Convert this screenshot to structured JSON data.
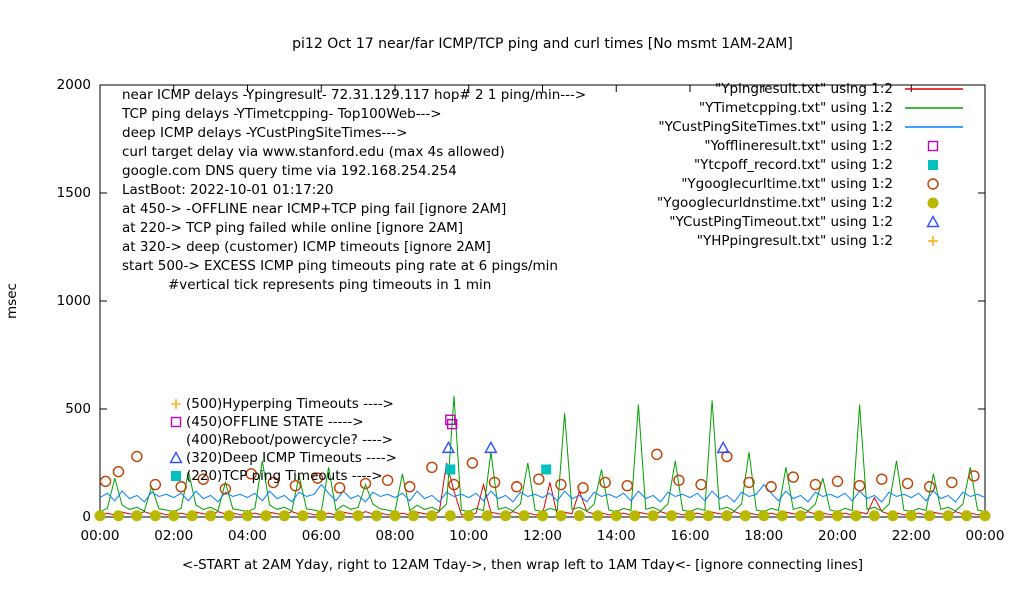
{
  "chart_data": {
    "type": "line",
    "title": "pi12 Oct 17  near/far ICMP/TCP ping and curl times [No msmt 1AM-2AM]",
    "xlabel": "<-START at 2AM Yday, right to 12AM Tday->, then wrap left to 1AM Tday<- [ignore connecting lines]",
    "ylabel": "msec",
    "xlim": [
      0,
      24
    ],
    "ylim": [
      0,
      2000
    ],
    "grid": false,
    "legend_position": "top-right",
    "x_tick_labels": [
      "00:00",
      "02:00",
      "04:00",
      "06:00",
      "08:00",
      "10:00",
      "12:00",
      "14:00",
      "16:00",
      "18:00",
      "20:00",
      "22:00",
      "00:00"
    ],
    "y_ticks": [
      0,
      500,
      1000,
      1500,
      2000
    ],
    "annotations_topleft": [
      "near ICMP delays -Ypingresult- 72.31.129.117 hop# 2 1 ping/min--->",
      "TCP ping delays -YTimetcpping- Top100Web--->",
      "deep ICMP delays -YCustPingSiteTimes--->",
      "curl target delay via www.stanford.edu (max 4s allowed)",
      "google.com DNS query time via 192.168.254.254",
      "LastBoot: 2022-10-01 01:17:20",
      "at 450-> -OFFLINE near ICMP+TCP ping fail [ignore 2AM]",
      "at 220-> TCP ping failed while online [ignore 2AM]",
      "at 320-> deep (customer) ICMP timeouts [ignore 2AM]",
      "start 500-> EXCESS ICMP ping timeouts ping rate at 6 pings/min",
      "#vertical tick represents ping timeouts in 1 min"
    ],
    "annotations_mid": [
      {
        "marker": "plus",
        "color": "#ffa500",
        "text": "(500)Hyperping Timeouts ---->"
      },
      {
        "marker": "square-open",
        "color": "#c000c0",
        "text": "(450)OFFLINE STATE ----->"
      },
      {
        "marker": "none",
        "color": "#000000",
        "text": "(400)Reboot/powercycle? ---->"
      },
      {
        "marker": "triangle-open",
        "color": "#3050ff",
        "text": "(320)Deep ICMP Timeouts ---->"
      },
      {
        "marker": "square-filled",
        "color": "#00c0c0",
        "text": "(220)TCP ping Timeouts ---->"
      }
    ],
    "series": [
      {
        "name": "\"Ypingresult.txt\" using 1:2",
        "style": "line",
        "color": "#e00000",
        "x_start": 0,
        "x_step": 0.2,
        "y": [
          12,
          18,
          9,
          22,
          15,
          11,
          25,
          14,
          19,
          10,
          12,
          18,
          9,
          22,
          15,
          11,
          25,
          14,
          19,
          10,
          12,
          18,
          9,
          22,
          15,
          11,
          25,
          14,
          19,
          10,
          12,
          18,
          9,
          22,
          15,
          11,
          25,
          14,
          19,
          10,
          12,
          18,
          9,
          22,
          15,
          11,
          25,
          250,
          120,
          10,
          12,
          18,
          150,
          22,
          15,
          11,
          25,
          14,
          19,
          10,
          12,
          160,
          9,
          22,
          15,
          120,
          25,
          14,
          19,
          10,
          12,
          18,
          9,
          22,
          15,
          11,
          25,
          14,
          19,
          10,
          12,
          18,
          9,
          22,
          15,
          11,
          25,
          14,
          19,
          10,
          12,
          18,
          9,
          22,
          15,
          11,
          25,
          14,
          19,
          10,
          12,
          18,
          9,
          22,
          15,
          90,
          25,
          14,
          19,
          10,
          12,
          18,
          9,
          22,
          15,
          11,
          25,
          14,
          19,
          10,
          12
        ]
      },
      {
        "name": "\"YTimetcpping.txt\" using 1:2",
        "style": "line",
        "color": "#00a000",
        "x_start": 0,
        "x_step": 0.2,
        "y": [
          25,
          40,
          180,
          55,
          35,
          45,
          28,
          140,
          38,
          32,
          25,
          40,
          210,
          55,
          35,
          45,
          28,
          160,
          38,
          32,
          25,
          40,
          260,
          55,
          35,
          45,
          28,
          190,
          38,
          32,
          25,
          230,
          30,
          55,
          35,
          45,
          150,
          60,
          38,
          32,
          25,
          200,
          30,
          55,
          35,
          45,
          28,
          60,
          560,
          32,
          25,
          40,
          30,
          300,
          35,
          45,
          28,
          60,
          250,
          32,
          25,
          40,
          30,
          480,
          35,
          45,
          28,
          60,
          220,
          32,
          25,
          40,
          30,
          520,
          35,
          45,
          28,
          60,
          260,
          32,
          25,
          40,
          30,
          540,
          35,
          45,
          28,
          60,
          300,
          32,
          25,
          40,
          30,
          230,
          35,
          45,
          28,
          60,
          180,
          32,
          25,
          40,
          30,
          520,
          35,
          45,
          28,
          60,
          260,
          32,
          25,
          40,
          30,
          200,
          35,
          45,
          28,
          60,
          230,
          32,
          25
        ]
      },
      {
        "name": "\"YCustPingSiteTimes.txt\" using 1:2",
        "style": "line",
        "color": "#0080ff",
        "x_start": 0,
        "x_step": 0.2,
        "y": [
          90,
          110,
          75,
          120,
          85,
          100,
          70,
          115,
          95,
          105,
          90,
          110,
          75,
          120,
          85,
          100,
          70,
          115,
          95,
          105,
          90,
          110,
          75,
          120,
          85,
          100,
          70,
          115,
          95,
          105,
          150,
          110,
          75,
          120,
          85,
          100,
          70,
          115,
          95,
          105,
          90,
          110,
          75,
          120,
          85,
          100,
          70,
          115,
          95,
          105,
          90,
          110,
          75,
          120,
          85,
          100,
          70,
          115,
          95,
          105,
          90,
          110,
          75,
          120,
          85,
          100,
          70,
          115,
          95,
          105,
          90,
          110,
          75,
          120,
          85,
          100,
          70,
          115,
          95,
          105,
          90,
          110,
          75,
          120,
          85,
          100,
          70,
          115,
          95,
          105,
          150,
          110,
          75,
          120,
          85,
          100,
          70,
          115,
          95,
          105,
          90,
          110,
          75,
          120,
          85,
          100,
          70,
          115,
          95,
          105,
          90,
          110,
          75,
          120,
          85,
          100,
          70,
          115,
          95,
          105,
          90
        ]
      },
      {
        "name": "\"Yofflineresult.txt\" using 1:2",
        "style": "square-open",
        "color": "#c000c0",
        "points": [
          [
            9.5,
            450
          ],
          [
            9.55,
            430
          ]
        ]
      },
      {
        "name": "\"Ytcpoff_record.txt\" using 1:2",
        "style": "square-filled",
        "color": "#00c0c0",
        "points": [
          [
            9.5,
            220
          ],
          [
            12.1,
            220
          ]
        ]
      },
      {
        "name": "\"Ygooglecurltime.txt\" using 1:2",
        "style": "circle-open",
        "color": "#c04000",
        "points": [
          [
            0.15,
            165
          ],
          [
            0.5,
            210
          ],
          [
            1.0,
            280
          ],
          [
            1.5,
            150
          ],
          [
            2.2,
            140
          ],
          [
            2.8,
            175
          ],
          [
            3.4,
            130
          ],
          [
            4.1,
            200
          ],
          [
            4.7,
            160
          ],
          [
            5.3,
            145
          ],
          [
            5.9,
            180
          ],
          [
            6.5,
            135
          ],
          [
            7.2,
            155
          ],
          [
            7.8,
            170
          ],
          [
            8.4,
            140
          ],
          [
            9.0,
            230
          ],
          [
            9.6,
            150
          ],
          [
            10.1,
            250
          ],
          [
            10.7,
            160
          ],
          [
            11.3,
            140
          ],
          [
            11.9,
            175
          ],
          [
            12.5,
            150
          ],
          [
            13.1,
            135
          ],
          [
            13.7,
            160
          ],
          [
            14.3,
            145
          ],
          [
            15.1,
            290
          ],
          [
            15.7,
            170
          ],
          [
            16.3,
            150
          ],
          [
            17.0,
            280
          ],
          [
            17.6,
            160
          ],
          [
            18.2,
            140
          ],
          [
            18.8,
            185
          ],
          [
            19.4,
            150
          ],
          [
            20.0,
            165
          ],
          [
            20.6,
            145
          ],
          [
            21.2,
            175
          ],
          [
            21.9,
            155
          ],
          [
            22.5,
            140
          ],
          [
            23.1,
            160
          ],
          [
            23.7,
            190
          ]
        ]
      },
      {
        "name": "\"Ygooglecurldnstime.txt\" using 1:2",
        "style": "circle-filled",
        "color": "#b8b800",
        "points": [
          [
            0,
            6
          ],
          [
            0.5,
            6
          ],
          [
            1,
            6
          ],
          [
            1.5,
            6
          ],
          [
            2,
            6
          ],
          [
            2.5,
            6
          ],
          [
            3,
            6
          ],
          [
            3.5,
            6
          ],
          [
            4,
            6
          ],
          [
            4.5,
            6
          ],
          [
            5,
            6
          ],
          [
            5.5,
            6
          ],
          [
            6,
            6
          ],
          [
            6.5,
            6
          ],
          [
            7,
            6
          ],
          [
            7.5,
            6
          ],
          [
            8,
            6
          ],
          [
            8.5,
            6
          ],
          [
            9,
            6
          ],
          [
            9.5,
            6
          ],
          [
            10,
            6
          ],
          [
            10.5,
            6
          ],
          [
            11,
            6
          ],
          [
            11.5,
            6
          ],
          [
            12,
            6
          ],
          [
            12.5,
            6
          ],
          [
            13,
            6
          ],
          [
            13.5,
            6
          ],
          [
            14,
            6
          ],
          [
            14.5,
            6
          ],
          [
            15,
            6
          ],
          [
            15.5,
            6
          ],
          [
            16,
            6
          ],
          [
            16.5,
            6
          ],
          [
            17,
            6
          ],
          [
            17.5,
            6
          ],
          [
            18,
            6
          ],
          [
            18.5,
            6
          ],
          [
            19,
            6
          ],
          [
            19.5,
            6
          ],
          [
            20,
            6
          ],
          [
            20.5,
            6
          ],
          [
            21,
            6
          ],
          [
            21.5,
            6
          ],
          [
            22,
            6
          ],
          [
            22.5,
            6
          ],
          [
            23,
            6
          ],
          [
            23.5,
            6
          ],
          [
            24,
            6
          ]
        ]
      },
      {
        "name": "\"YCustPingTimeout.txt\" using 1:2",
        "style": "triangle-open",
        "color": "#3050ff",
        "points": [
          [
            9.45,
            320
          ],
          [
            10.6,
            320
          ],
          [
            16.9,
            320
          ]
        ]
      },
      {
        "name": "\"YHPpingresult.txt\" using 1:2",
        "style": "plus",
        "color": "#ffa500",
        "points": []
      }
    ]
  }
}
